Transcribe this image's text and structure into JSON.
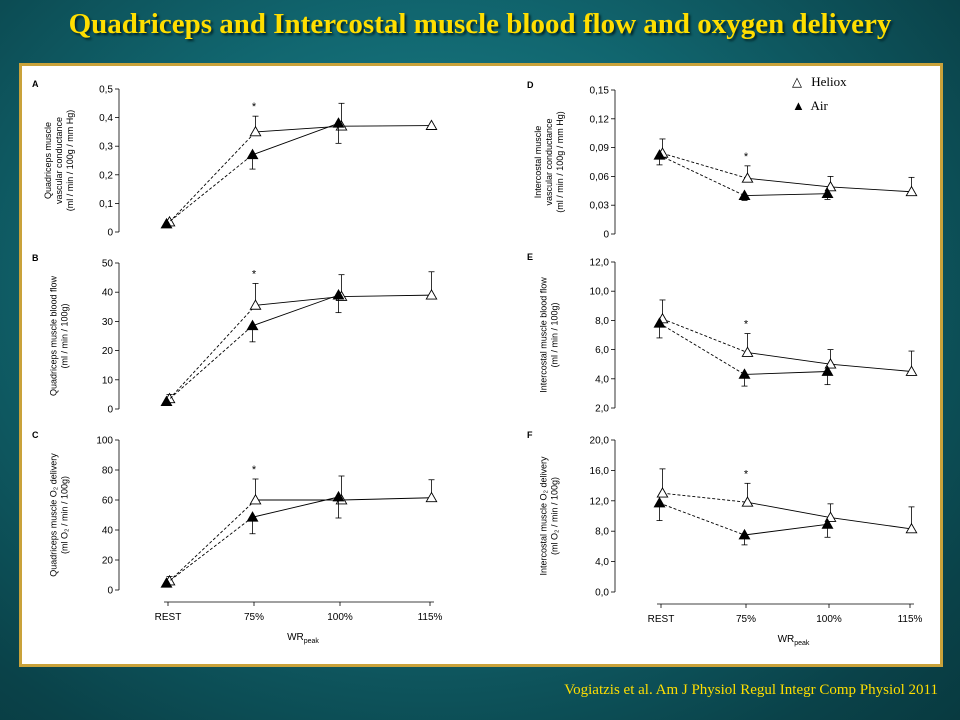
{
  "slide": {
    "title": "Quadriceps and Intercostal muscle blood flow and oxygen delivery",
    "citation": "Vogiatzis et al. Am J Physiol Regul Integr Comp Physiol 2011"
  },
  "legend": {
    "items": [
      {
        "symbol": "△",
        "label": "Heliox"
      },
      {
        "symbol": "▲",
        "label": "Air"
      }
    ]
  },
  "colors": {
    "background": "#11666f",
    "title_text": "#ffde00",
    "frame_border": "#c9a23a",
    "series": "#000000"
  },
  "shared_x": {
    "categories": [
      "REST",
      "75%",
      "100%",
      "115%"
    ],
    "xlabel_main": "WR",
    "xlabel_sub": "peak"
  },
  "chart_data": [
    {
      "panel": "A",
      "type": "line",
      "ylabel": [
        "Quadriceps muscle",
        "vascular conductance",
        "(ml / min / 100g / mm Hg)"
      ],
      "ylim": [
        0,
        0.5
      ],
      "yticks": [
        0,
        0.1,
        0.2,
        0.3,
        0.4,
        0.5
      ],
      "ytick_labels": [
        "0",
        "0,1",
        "0,2",
        "0,3",
        "0,4",
        "0,5"
      ],
      "categories": [
        "REST",
        "75%",
        "100%",
        "115%"
      ],
      "significance": {
        "category": "75%",
        "label": "*"
      },
      "series": [
        {
          "name": "Heliox",
          "marker": "open-triangle",
          "values": [
            0.035,
            0.35,
            0.37,
            0.372
          ],
          "error": [
            0,
            0.055,
            0.08,
            0
          ]
        },
        {
          "name": "Air",
          "marker": "filled-triangle",
          "values": [
            0.028,
            0.27,
            0.38,
            null
          ],
          "error": [
            0,
            0.05,
            0.07,
            0
          ]
        }
      ]
    },
    {
      "panel": "B",
      "type": "line",
      "ylabel": [
        "Quadriceps muscle blood flow",
        "(ml / min / 100g)"
      ],
      "ylim": [
        0,
        50
      ],
      "yticks": [
        0,
        10,
        20,
        30,
        40,
        50
      ],
      "ytick_labels": [
        "0",
        "10",
        "20",
        "30",
        "40",
        "50"
      ],
      "categories": [
        "REST",
        "75%",
        "100%",
        "115%"
      ],
      "significance": {
        "category": "75%",
        "label": "*"
      },
      "series": [
        {
          "name": "Heliox",
          "marker": "open-triangle",
          "values": [
            3.5,
            35.5,
            38.5,
            39
          ],
          "error": [
            1.5,
            7.5,
            7.5,
            8
          ]
        },
        {
          "name": "Air",
          "marker": "filled-triangle",
          "values": [
            2.5,
            28.5,
            39,
            null
          ],
          "error": [
            0,
            5.5,
            6,
            0
          ]
        }
      ]
    },
    {
      "panel": "C",
      "type": "line",
      "ylabel": [
        "Quadriceps muscle O₂ delivery",
        "(ml O₂ / min / 100g)"
      ],
      "ylim": [
        0,
        100
      ],
      "yticks": [
        0,
        20,
        40,
        60,
        80,
        100
      ],
      "ytick_labels": [
        "0",
        "20",
        "40",
        "60",
        "80",
        "100"
      ],
      "categories": [
        "REST",
        "75%",
        "100%",
        "115%"
      ],
      "significance": {
        "category": "75%",
        "label": "*"
      },
      "series": [
        {
          "name": "Heliox",
          "marker": "open-triangle",
          "values": [
            6,
            60,
            60,
            61.5
          ],
          "error": [
            3,
            14,
            16,
            12
          ]
        },
        {
          "name": "Air",
          "marker": "filled-triangle",
          "values": [
            4.5,
            48.5,
            62,
            null
          ],
          "error": [
            0,
            11,
            14,
            0
          ]
        }
      ]
    },
    {
      "panel": "D",
      "type": "line",
      "ylabel": [
        "Intercostal muscle",
        "vascular conductance",
        "(ml / min / 100g / mm Hg)"
      ],
      "ylim": [
        0,
        0.15
      ],
      "yticks": [
        0,
        0.03,
        0.06,
        0.09,
        0.12,
        0.15
      ],
      "ytick_labels": [
        "0",
        "0,03",
        "0,06",
        "0,09",
        "0,12",
        "0,15"
      ],
      "categories": [
        "REST",
        "75%",
        "100%",
        "115%"
      ],
      "significance": {
        "category": "75%",
        "label": "*"
      },
      "series": [
        {
          "name": "Heliox",
          "marker": "open-triangle",
          "values": [
            0.084,
            0.058,
            0.049,
            0.044
          ],
          "error": [
            0.015,
            0.013,
            0.011,
            0.015
          ]
        },
        {
          "name": "Air",
          "marker": "filled-triangle",
          "values": [
            0.082,
            0.04,
            0.042,
            null
          ],
          "error": [
            0.01,
            0.005,
            0.006,
            0
          ]
        }
      ]
    },
    {
      "panel": "E",
      "type": "line",
      "ylabel": [
        "Intercostal muscle blood flow",
        "(ml / min / 100g)"
      ],
      "ylim": [
        2,
        12
      ],
      "yticks": [
        2,
        4,
        6,
        8,
        10,
        12
      ],
      "ytick_labels": [
        "2,0",
        "4,0",
        "6,0",
        "8,0",
        "10,0",
        "12,0"
      ],
      "categories": [
        "REST",
        "75%",
        "100%",
        "115%"
      ],
      "significance": {
        "category": "75%",
        "label": "*"
      },
      "series": [
        {
          "name": "Heliox",
          "marker": "open-triangle",
          "values": [
            8.1,
            5.8,
            5.0,
            4.5
          ],
          "error": [
            1.3,
            1.3,
            1.0,
            1.4
          ]
        },
        {
          "name": "Air",
          "marker": "filled-triangle",
          "values": [
            7.8,
            4.3,
            4.5,
            null
          ],
          "error": [
            1.0,
            0.8,
            0.9,
            0
          ]
        }
      ]
    },
    {
      "panel": "F",
      "type": "line",
      "ylabel": [
        "Intercostal muscle O₂ delivery",
        "(ml O₂ / min / 100g)"
      ],
      "ylim": [
        0,
        20
      ],
      "yticks": [
        0,
        4,
        8,
        12,
        16,
        20
      ],
      "ytick_labels": [
        "0,0",
        "4,0",
        "8,0",
        "12,0",
        "16,0",
        "20,0"
      ],
      "categories": [
        "REST",
        "75%",
        "100%",
        "115%"
      ],
      "significance": {
        "category": "75%",
        "label": "*"
      },
      "series": [
        {
          "name": "Heliox",
          "marker": "open-triangle",
          "values": [
            13.0,
            11.8,
            9.8,
            8.3
          ],
          "error": [
            3.2,
            2.5,
            1.8,
            2.9
          ]
        },
        {
          "name": "Air",
          "marker": "filled-triangle",
          "values": [
            11.7,
            7.5,
            8.9,
            null
          ],
          "error": [
            2.3,
            1.3,
            1.7,
            0
          ]
        }
      ]
    }
  ]
}
